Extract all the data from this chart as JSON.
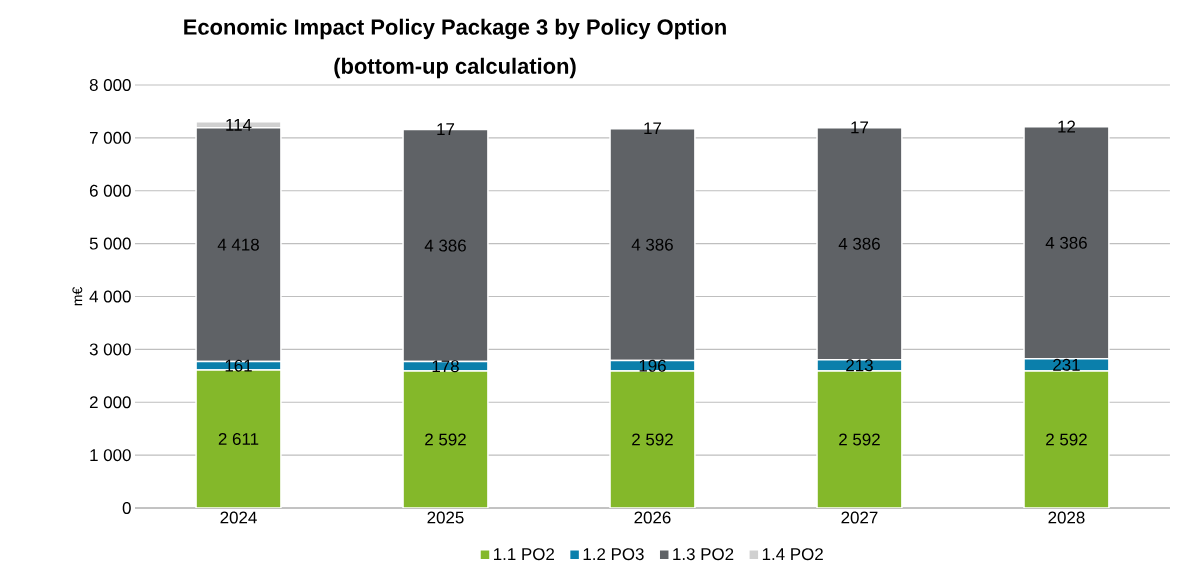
{
  "chart_data": {
    "type": "bar",
    "stacked": true,
    "title": "Economic Impact Policy Package 3 by Policy Option",
    "subtitle": "(bottom-up calculation)",
    "ylabel": "m€",
    "categories": [
      "2024",
      "2025",
      "2026",
      "2027",
      "2028"
    ],
    "series": [
      {
        "name": "1.1 PO2",
        "color": "#84b82a",
        "values": [
          2611,
          2592,
          2592,
          2592,
          2592
        ],
        "value_labels": [
          "2 611",
          "2 592",
          "2 592",
          "2 592",
          "2 592"
        ]
      },
      {
        "name": "1.2 PO3",
        "color": "#0b7fab",
        "values": [
          161,
          178,
          196,
          213,
          231
        ],
        "value_labels": [
          "161",
          "178",
          "196",
          "213",
          "231"
        ]
      },
      {
        "name": "1.3 PO2",
        "color": "#5f6266",
        "values": [
          4418,
          4386,
          4386,
          4386,
          4386
        ],
        "value_labels": [
          "4 418",
          "4 386",
          "4 386",
          "4 386",
          "4 386"
        ]
      },
      {
        "name": "1.4 PO2",
        "color": "#d0d0d0",
        "values": [
          114,
          17,
          17,
          17,
          12
        ],
        "value_labels": [
          "114",
          "17",
          "17",
          "17",
          "12"
        ]
      }
    ],
    "ylim": [
      0,
      8000
    ],
    "yticks": [
      0,
      {
        "value": 1000,
        "label": "1 000"
      },
      {
        "value": 2000,
        "label": "2 000"
      },
      {
        "value": 3000,
        "label": "3 000"
      },
      {
        "value": 4000,
        "label": "4 000"
      },
      {
        "value": 5000,
        "label": "5 000"
      },
      {
        "value": 6000,
        "label": "6 000"
      },
      {
        "value": 7000,
        "label": "7 000"
      },
      {
        "value": 8000,
        "label": "8 000"
      }
    ],
    "grid": "y",
    "legend": "bottom"
  }
}
